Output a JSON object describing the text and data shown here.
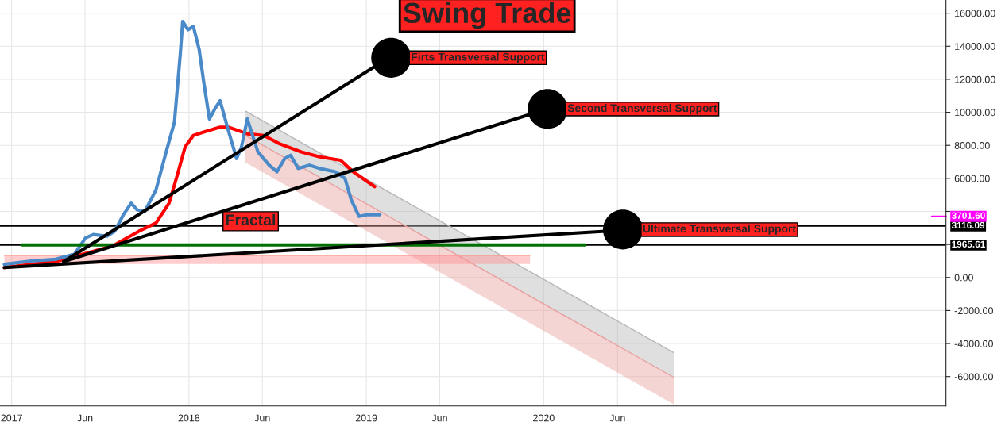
{
  "chart_data": {
    "type": "line",
    "title": "Swing Trade",
    "xlim": [
      "2016-12-08",
      "2022-04-08"
    ],
    "xticks": [
      {
        "value": "2017-01-01",
        "label": "2017"
      },
      {
        "value": "2017-06-01",
        "label": "Jun"
      },
      {
        "value": "2018-01-01",
        "label": "2018"
      },
      {
        "value": "2018-06-01",
        "label": "Jun"
      },
      {
        "value": "2019-01-01",
        "label": "2019"
      },
      {
        "value": "2019-06-01",
        "label": "Jun"
      },
      {
        "value": "2020-01-01",
        "label": "2020"
      },
      {
        "value": "2020-06-01",
        "label": "Jun"
      }
    ],
    "ylim": [
      -7780,
      16800
    ],
    "yticks": [
      {
        "value": -6000,
        "label": "-6000.00"
      },
      {
        "value": -4000,
        "label": "-4000.00"
      },
      {
        "value": -2000,
        "label": "-2000.00"
      },
      {
        "value": 0,
        "label": "0.00"
      },
      {
        "value": 2000,
        "label": null
      },
      {
        "value": 4000,
        "label": null
      },
      {
        "value": 6000,
        "label": "6000.00"
      },
      {
        "value": 8000,
        "label": "8000.00"
      },
      {
        "value": 10000,
        "label": "10000.00"
      },
      {
        "value": 12000,
        "label": "12000.00"
      },
      {
        "value": 14000,
        "label": "14000.00"
      },
      {
        "value": 16000,
        "label": "16000.00"
      }
    ],
    "grid": true,
    "legend": false,
    "series": [
      {
        "color": "#b8b8b8",
        "x": [
          "2018-04-27",
          "2020-09-25"
        ],
        "values": [
          10080,
          -4560
        ],
        "lower": [
          8600,
          -6050
        ],
        "upper": [
          10080,
          -4560
        ]
      },
      {
        "color": "#e8a0a0",
        "x": [
          "2018-04-27",
          "2020-09-25"
        ],
        "values": [
          8600,
          -6050
        ],
        "lower": [
          6960,
          -7680
        ],
        "upper": [
          8600,
          -6050
        ]
      },
      {
        "color": "#ff9090",
        "x": [
          "2016-12-17",
          "2019-12-04"
        ],
        "values": [
          1340,
          1340
        ],
        "lower": [
          820,
          820
        ],
        "upper": [
          1340,
          1340
        ]
      },
      {
        "color": "#ff0000",
        "x": [
          "2016-12-17",
          "2017-04-06",
          "2017-07-27",
          "2017-09-20",
          "2017-10-25",
          "2017-11-21",
          "2017-12-07",
          "2017-12-24",
          "2018-01-10",
          "2018-01-31",
          "2018-03-06",
          "2018-03-23",
          "2018-05-01",
          "2018-06-04",
          "2018-07-06",
          "2018-08-20",
          "2018-09-27",
          "2018-11-09",
          "2018-12-05",
          "2019-01-18"
        ],
        "values": [
          600,
          1000,
          1900,
          2800,
          3300,
          4500,
          6100,
          7900,
          8600,
          8800,
          9100,
          9100,
          8700,
          8600,
          8100,
          7600,
          7300,
          7100,
          6400,
          5500
        ]
      },
      {
        "color": "#4a8ac9",
        "x": [
          "2016-12-17",
          "2017-02-10",
          "2017-04-01",
          "2017-05-10",
          "2017-06-02",
          "2017-06-18",
          "2017-07-16",
          "2017-08-01",
          "2017-08-19",
          "2017-09-04",
          "2017-09-16",
          "2017-10-02",
          "2017-10-25",
          "2017-11-15",
          "2017-12-02",
          "2017-12-14",
          "2017-12-19",
          "2017-12-30",
          "2018-01-10",
          "2018-01-22",
          "2018-01-31",
          "2018-02-12",
          "2018-02-23",
          "2018-03-06",
          "2018-03-23",
          "2018-04-09",
          "2018-04-19",
          "2018-05-01",
          "2018-05-23",
          "2018-06-15",
          "2018-07-01",
          "2018-07-17",
          "2018-07-29",
          "2018-08-14",
          "2018-09-06",
          "2018-09-27",
          "2018-10-29",
          "2018-11-18",
          "2018-12-01",
          "2018-12-17",
          "2019-01-02",
          "2019-01-29"
        ],
        "values": [
          800,
          1000,
          1100,
          1400,
          2400,
          2600,
          2500,
          2800,
          3800,
          4500,
          4100,
          4000,
          5300,
          7600,
          9400,
          13500,
          15500,
          15000,
          15200,
          13800,
          11900,
          9600,
          10200,
          10700,
          8900,
          7200,
          7900,
          9600,
          7600,
          6800,
          6400,
          7200,
          7400,
          6600,
          6800,
          6600,
          6400,
          6000,
          4700,
          3700,
          3800,
          3800
        ]
      },
      {
        "color": "#007000",
        "x": [
          "2017-01-22",
          "2020-03-26"
        ],
        "values": [
          1970,
          1970
        ]
      },
      {
        "color": "#000000",
        "x": [
          "2017-04-18",
          "2019-01-20"
        ],
        "values": [
          960,
          12800
        ]
      },
      {
        "color": "#000000",
        "x": [
          "2017-04-18",
          "2019-12-06"
        ],
        "values": [
          960,
          9900
        ]
      },
      {
        "color": "#000000",
        "x": [
          "2016-12-17",
          "2020-05-07"
        ],
        "values": [
          600,
          2800
        ]
      },
      {
        "type": "scatter",
        "color": "#000000",
        "marker": "circle",
        "x": [
          "2019-02-21",
          "2020-01-09",
          "2020-06-12"
        ],
        "values": [
          13300,
          10200,
          2900
        ]
      }
    ],
    "ref_lines": [
      {
        "axis": "y",
        "value": 1965.61,
        "label": "1965.61",
        "color": "#000000",
        "line_style": "solid"
      },
      {
        "axis": "y",
        "value": 3116.09,
        "label": "3116.09",
        "color": "#000000",
        "line_style": "solid"
      },
      {
        "axis": "y",
        "value": 3701.6,
        "label": "3701.60",
        "color": "#ff00ff"
      }
    ],
    "annotations": [
      {
        "text": "Firts Transversal Support",
        "x": "2019-02-21",
        "y": 13300
      },
      {
        "text": "Second Transversal Support",
        "x": "2020-01-09",
        "y": 10200
      },
      {
        "text": "Ultimate Transversal Support",
        "x": "2020-06-12",
        "y": 2900
      },
      "Fractal"
    ]
  }
}
